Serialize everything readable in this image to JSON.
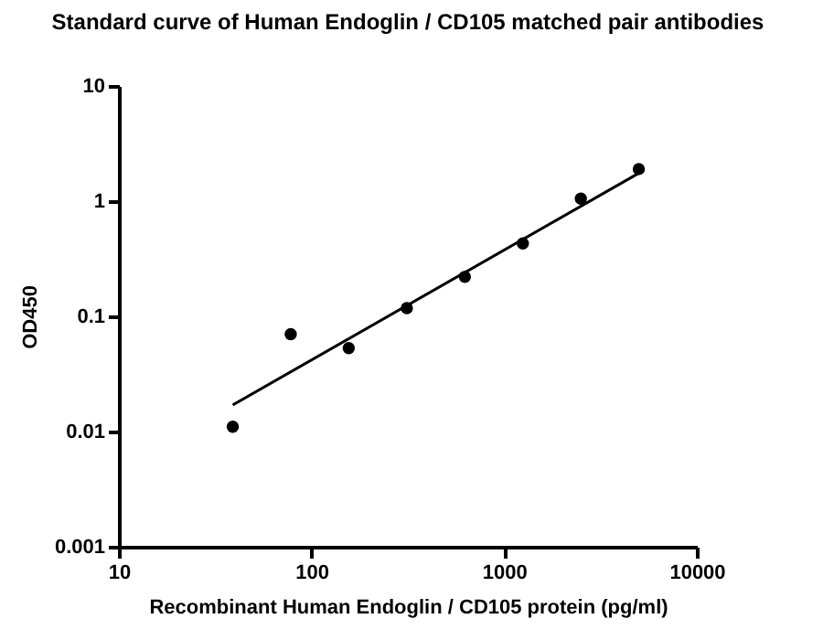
{
  "chart_data": {
    "type": "scatter",
    "title": "Standard curve of Human Endoglin / CD105 matched pair antibodies",
    "xlabel": "Recombinant Human Endoglin / CD105 protein (pg/ml)",
    "ylabel": "OD450",
    "log": "xy",
    "xlim": [
      10,
      10000
    ],
    "xticks": [
      10,
      100,
      1000,
      10000
    ],
    "ylim": [
      0.001,
      10
    ],
    "yticks": [
      0.001,
      0.01,
      0.1,
      1,
      10
    ],
    "grid": false,
    "series": [
      {
        "marker": "circle",
        "color": "#000000",
        "x": [
          39,
          78,
          156,
          312.5,
          625,
          1250,
          2500,
          5000
        ],
        "values": [
          0.011,
          0.07,
          0.053,
          0.118,
          0.22,
          0.43,
          1.05,
          1.9
        ]
      },
      {
        "type": "line",
        "color": "#000000",
        "x": [
          39,
          5000
        ],
        "values": [
          0.017,
          1.75
        ]
      }
    ]
  }
}
